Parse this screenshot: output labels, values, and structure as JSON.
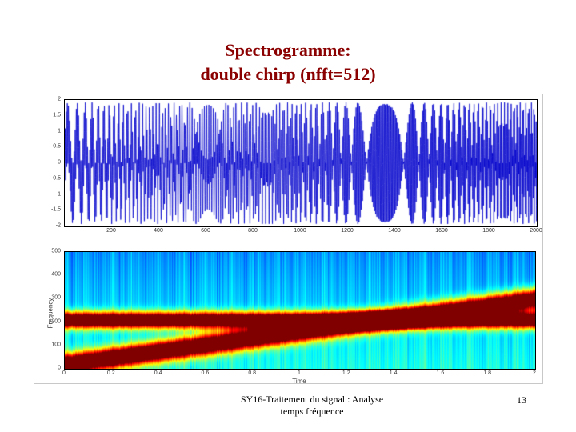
{
  "title": {
    "line1": "Spectrogramme:",
    "line2": "double chirp (nfft=512)"
  },
  "colors": {
    "title": "#8B0000",
    "waveform_line": "#0000CC",
    "figure_border": "#C8C8C8"
  },
  "footer": {
    "line1": "SY16-Traitement du signal : Analyse",
    "line2": "temps fréquence",
    "page_number": "13"
  },
  "chart_data": [
    {
      "type": "line",
      "title": "",
      "xlabel": "",
      "ylabel": "",
      "xlim": [
        0,
        2000
      ],
      "ylim": [
        -2,
        2
      ],
      "xticks": [
        200,
        400,
        600,
        800,
        1000,
        1200,
        1400,
        1600,
        1800,
        2000
      ],
      "yticks": [
        2,
        1.5,
        1,
        0.5,
        0,
        -0.5,
        -1,
        -1.5,
        -2
      ],
      "grid": false,
      "legend": "none",
      "series": [
        {
          "name": "double chirp time signal",
          "color": "#0000CC",
          "description": "sum of a ~210 Hz tone and a linear chirp rising ~20->300 Hz over 2 s, amplitude envelope beating between -2 and 2, 2000 samples"
        }
      ],
      "signal": {
        "duration": 2,
        "components": [
          {
            "type": "tone",
            "freq": 210,
            "amp": 1
          },
          {
            "type": "chirp",
            "f0": 20,
            "f1": 300,
            "amp": 1
          }
        ]
      }
    },
    {
      "type": "heatmap",
      "title": "",
      "xlabel": "Time",
      "ylabel": "Frequency",
      "xlim": [
        0,
        2
      ],
      "ylim": [
        0,
        500
      ],
      "xticks": [
        0,
        0.2,
        0.4,
        0.6,
        0.8,
        1,
        1.2,
        1.4,
        1.6,
        1.8,
        2
      ],
      "yticks": [
        500,
        400,
        300,
        200,
        100,
        0
      ],
      "colormap": "jet",
      "background_level": "cyan-blue with vertical striations, darker blue toward high frequencies",
      "ridges": [
        {
          "type": "constant",
          "freq": 210,
          "sigma": 24,
          "description": "horizontal red ridge: constant ~210 Hz component"
        },
        {
          "type": "linear",
          "f0": 20,
          "f1": 300,
          "sigma": 30,
          "description": "diagonal red ridge: linear chirp rising from ~20 Hz at t=0 to ~300 Hz at t=2, crossing the constant ridge near t=1.4"
        }
      ]
    }
  ]
}
